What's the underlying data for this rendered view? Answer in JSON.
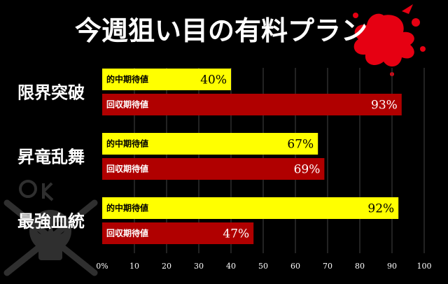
{
  "title": "今週狙い目の有料プラン",
  "colors": {
    "background": "#000000",
    "expected_hit_bar": "#ffff00",
    "expected_return_bar": "#b00000",
    "grid": "#444444",
    "splash": "#e60012"
  },
  "chart_data": {
    "type": "bar",
    "orientation": "horizontal",
    "categories": [
      "限界突破",
      "昇竜乱舞",
      "最強血統"
    ],
    "series": [
      {
        "name": "的中期待値",
        "values": [
          40,
          67,
          92
        ]
      },
      {
        "name": "回収期待値",
        "values": [
          93,
          69,
          47
        ]
      }
    ],
    "value_suffix": "%",
    "xlim": [
      0,
      100
    ],
    "xticks": [
      "0%",
      "10",
      "20",
      "30",
      "40",
      "50",
      "60",
      "70",
      "80",
      "90",
      "100"
    ],
    "grid": true
  }
}
